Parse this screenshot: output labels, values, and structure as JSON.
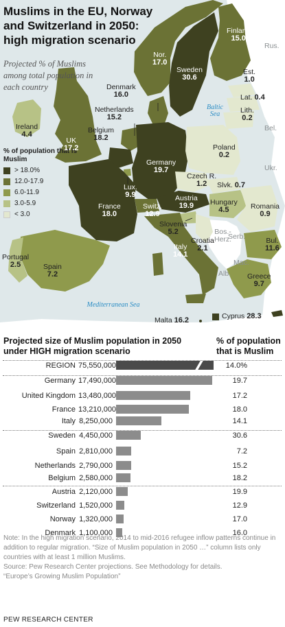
{
  "map": {
    "title": "Muslims in the EU, Norway and Switzerland in 2050: high migration scenario",
    "subtitle": "Projected % of Muslims among total population in each country",
    "legend": {
      "title": "% of population that is Muslim",
      "items": [
        {
          "label": "> 18.0%",
          "color": "#3e4120"
        },
        {
          "label": "12.0-17.9",
          "color": "#6b7235"
        },
        {
          "label": "6.0-11.9",
          "color": "#8f9a4c"
        },
        {
          "label": "3.0-5.9",
          "color": "#b7c286"
        },
        {
          "label": "< 3.0",
          "color": "#e3e8cf"
        }
      ]
    },
    "seas": {
      "baltic": "Baltic Sea",
      "mediterranean": "Mediterranean Sea"
    },
    "countries": {
      "finland": {
        "name": "Finland",
        "value": "15.0"
      },
      "norway": {
        "name": "Nor.",
        "value": "17.0"
      },
      "sweden": {
        "name": "Sweden",
        "value": "30.6"
      },
      "estonia": {
        "name": "Est.",
        "value": "1.0"
      },
      "latvia": {
        "name": "Lat.",
        "value": "0.4"
      },
      "lithuania": {
        "name": "Lith.",
        "value": "0.2"
      },
      "denmark": {
        "name": "Denmark",
        "value": "16.0"
      },
      "netherlands": {
        "name": "Netherlands",
        "value": "15.2"
      },
      "belgium": {
        "name": "Belgium",
        "value": "18.2"
      },
      "ireland": {
        "name": "Ireland",
        "value": "4.4"
      },
      "uk": {
        "name": "UK",
        "value": "17.2"
      },
      "germany": {
        "name": "Germany",
        "value": "19.7"
      },
      "poland": {
        "name": "Poland",
        "value": "0.2"
      },
      "czech": {
        "name": "Czech R.",
        "value": "1.2"
      },
      "slovakia": {
        "name": "Slvk.",
        "value": "0.7"
      },
      "luxembourg": {
        "name": "Lux.",
        "value": "9.9"
      },
      "france": {
        "name": "France",
        "value": "18.0"
      },
      "switzerland": {
        "name": "Switz.",
        "value": "12.9"
      },
      "austria": {
        "name": "Austria",
        "value": "19.9"
      },
      "hungary": {
        "name": "Hungary",
        "value": "4.5"
      },
      "romania": {
        "name": "Romania",
        "value": "0.9"
      },
      "slovenia": {
        "name": "Slovenia",
        "value": "5.2"
      },
      "croatia": {
        "name": "Croatia",
        "value": "2.1"
      },
      "italy": {
        "name": "Italy",
        "value": "14.1"
      },
      "portugal": {
        "name": "Portugal",
        "value": "2.5"
      },
      "spain": {
        "name": "Spain",
        "value": "7.2"
      },
      "bulgaria": {
        "name": "Bul.",
        "value": "11.6"
      },
      "greece": {
        "name": "Greece",
        "value": "9.7"
      },
      "malta": {
        "name": "Malta",
        "value": "16.2"
      },
      "cyprus": {
        "name": "Cyprus",
        "value": "28.3"
      }
    },
    "other_labels": {
      "rus": "Rus.",
      "bel": "Bel.",
      "ukr": "Ukr.",
      "serb": "Serb.",
      "bos": "Bos.-Herz.",
      "mac": "Mac.",
      "alb": "Alb."
    }
  },
  "table": {
    "title": "Projected size of Muslim population in 2050 under HIGH migration scenario",
    "pct_header": "% of population that is Muslim",
    "rows": [
      {
        "country": "REGION",
        "population": "75,550,000",
        "pct": "14.0%",
        "pop_value": 75550000
      },
      {
        "country": "Germany",
        "population": "17,490,000",
        "pct": "19.7",
        "pop_value": 17490000
      },
      {
        "country": "United Kingdom",
        "population": "13,480,000",
        "pct": "17.2",
        "pop_value": 13480000
      },
      {
        "country": "France",
        "population": "13,210,000",
        "pct": "18.0",
        "pop_value": 13210000
      },
      {
        "country": "Italy",
        "population": "8,250,000",
        "pct": "14.1",
        "pop_value": 8250000
      },
      {
        "country": "Sweden",
        "population": "4,450,000",
        "pct": "30.6",
        "pop_value": 4450000
      },
      {
        "country": "Spain",
        "population": "2,810,000",
        "pct": "7.2",
        "pop_value": 2810000
      },
      {
        "country": "Netherlands",
        "population": "2,790,000",
        "pct": "15.2",
        "pop_value": 2790000
      },
      {
        "country": "Belgium",
        "population": "2,580,000",
        "pct": "18.2",
        "pop_value": 2580000
      },
      {
        "country": "Austria",
        "population": "2,120,000",
        "pct": "19.9",
        "pop_value": 2120000
      },
      {
        "country": "Switzerland",
        "population": "1,520,000",
        "pct": "12.9",
        "pop_value": 1520000
      },
      {
        "country": "Norway",
        "population": "1,320,000",
        "pct": "17.0",
        "pop_value": 1320000
      },
      {
        "country": "Denmark",
        "population": "1,100,000",
        "pct": "16.0",
        "pop_value": 1100000
      }
    ],
    "bar_color": "#8c8c8c",
    "region_bar_color": "#4a4a4a"
  },
  "note": {
    "line1": "Note: In the high migration scenario, 2014 to mid-2016 refugee inflow patterns continue in addition to regular migration. “Size of Muslim population in 2050 …” column lists only countries with at least 1 million Muslims.",
    "line2": "Source: Pew Research Center projections. See Methodology for details.",
    "line3": "“Europe’s Growing Muslim Population”"
  },
  "brand": "PEW RESEARCH CENTER"
}
